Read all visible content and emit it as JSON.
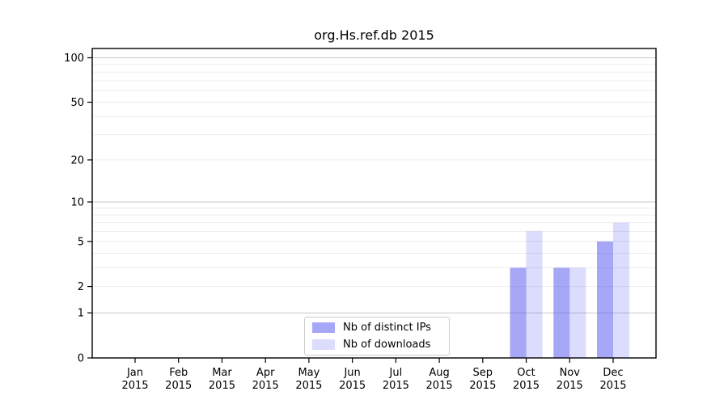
{
  "title": "org.Hs.ref.db 2015",
  "chart_data": {
    "type": "bar",
    "title": "org.Hs.ref.db 2015",
    "categories": [
      "Jan",
      "Feb",
      "Mar",
      "Apr",
      "May",
      "Jun",
      "Jul",
      "Aug",
      "Sep",
      "Oct",
      "Nov",
      "Dec"
    ],
    "x_year_label": "2015",
    "series": [
      {
        "name": "Nb of distinct IPs",
        "color": "rgba(80,80,240,0.5)",
        "values": [
          null,
          null,
          null,
          null,
          null,
          null,
          null,
          null,
          null,
          3,
          3,
          5
        ]
      },
      {
        "name": "Nb of downloads",
        "color": "rgba(80,80,240,0.2)",
        "values": [
          null,
          null,
          null,
          null,
          null,
          null,
          null,
          null,
          null,
          6,
          3,
          7
        ]
      }
    ],
    "xlabel": "",
    "ylabel": "",
    "y_scale": "log1p",
    "ylim": [
      0,
      100
    ],
    "y_ticks": [
      0,
      1,
      2,
      5,
      10,
      20,
      50,
      100
    ],
    "grid_major": [
      1,
      10,
      100
    ],
    "grid_minor": [
      2,
      3,
      4,
      5,
      6,
      7,
      8,
      9,
      20,
      30,
      40,
      50,
      60,
      70,
      80,
      90
    ],
    "grid": "on",
    "legend_position": "lower center",
    "axis_color": "#000000",
    "grid_major_color": "#c9c9c9",
    "grid_minor_color": "#ededed",
    "legend_border_color": "#cccccc"
  }
}
